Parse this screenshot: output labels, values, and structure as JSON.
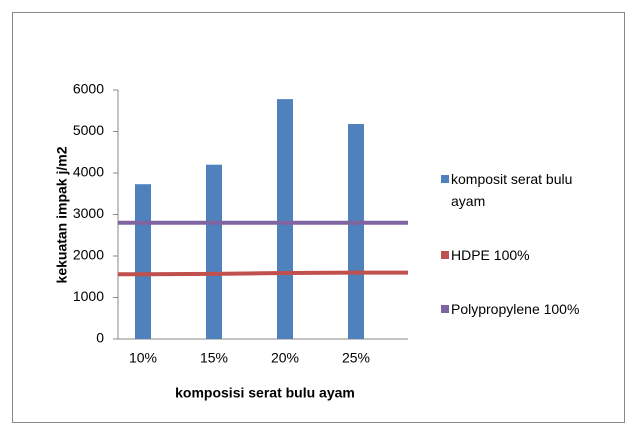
{
  "chart_data": {
    "type": "bar",
    "categories": [
      "10%",
      "15%",
      "20%",
      "25%"
    ],
    "series": [
      {
        "name": "komposit serat bulu ayam",
        "color": "#4f81bd",
        "type": "bar",
        "values": [
          3730,
          4200,
          5780,
          5180
        ]
      },
      {
        "name": "HDPE 100%",
        "color": "#c0504d",
        "type": "line",
        "values": [
          1560,
          1570,
          1590,
          1600
        ]
      },
      {
        "name": "Polypropylene 100%",
        "color": "#8064a2",
        "type": "line",
        "values": [
          2800,
          2800,
          2800,
          2800
        ]
      }
    ],
    "ylabel": "kekuatan impak j/m2",
    "xlabel": "komposisi serat bulu ayam",
    "ylim": [
      0,
      6000
    ],
    "yticks": [
      0,
      1000,
      2000,
      3000,
      4000,
      5000,
      6000
    ],
    "legend": "right"
  }
}
